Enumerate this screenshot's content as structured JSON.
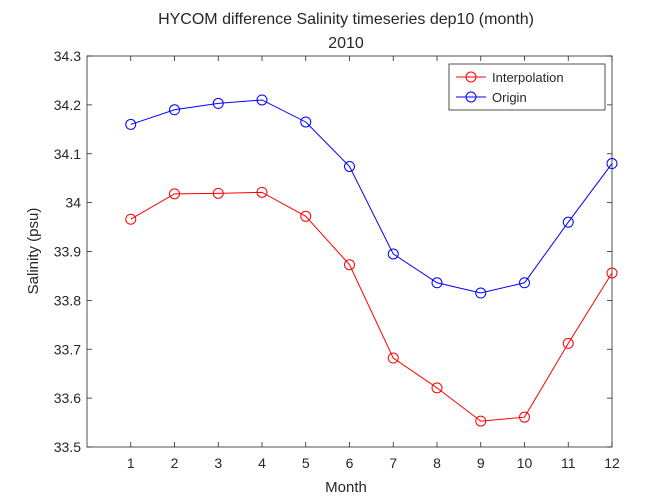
{
  "chart_data": {
    "type": "line",
    "title": "HYCOM difference Salinity timeseries dep10 (month)",
    "subtitle": "2010",
    "xlabel": "Month",
    "ylabel": "Salinity (psu)",
    "x": [
      1,
      2,
      3,
      4,
      5,
      6,
      7,
      8,
      9,
      10,
      11,
      12
    ],
    "xlim": [
      0,
      12
    ],
    "ylim": [
      33.5,
      34.3
    ],
    "xticks": [
      "1",
      "2",
      "3",
      "4",
      "5",
      "6",
      "7",
      "8",
      "9",
      "10",
      "11",
      "12"
    ],
    "yticks": [
      "33.5",
      "33.6",
      "33.7",
      "33.8",
      "33.9",
      "34",
      "34.1",
      "34.2",
      "34.3"
    ],
    "grid": false,
    "legend_position": "top-right",
    "series": [
      {
        "name": "Interpolation",
        "color": "#ff0000",
        "marker": "circle",
        "values": [
          33.966,
          34.018,
          34.019,
          34.021,
          33.972,
          33.873,
          33.682,
          33.621,
          33.553,
          33.561,
          33.712,
          33.856
        ]
      },
      {
        "name": "Origin",
        "color": "#0000ff",
        "marker": "circle",
        "values": [
          34.16,
          34.19,
          34.203,
          34.21,
          34.165,
          34.074,
          33.895,
          33.836,
          33.815,
          33.836,
          33.96,
          34.08
        ]
      }
    ]
  }
}
